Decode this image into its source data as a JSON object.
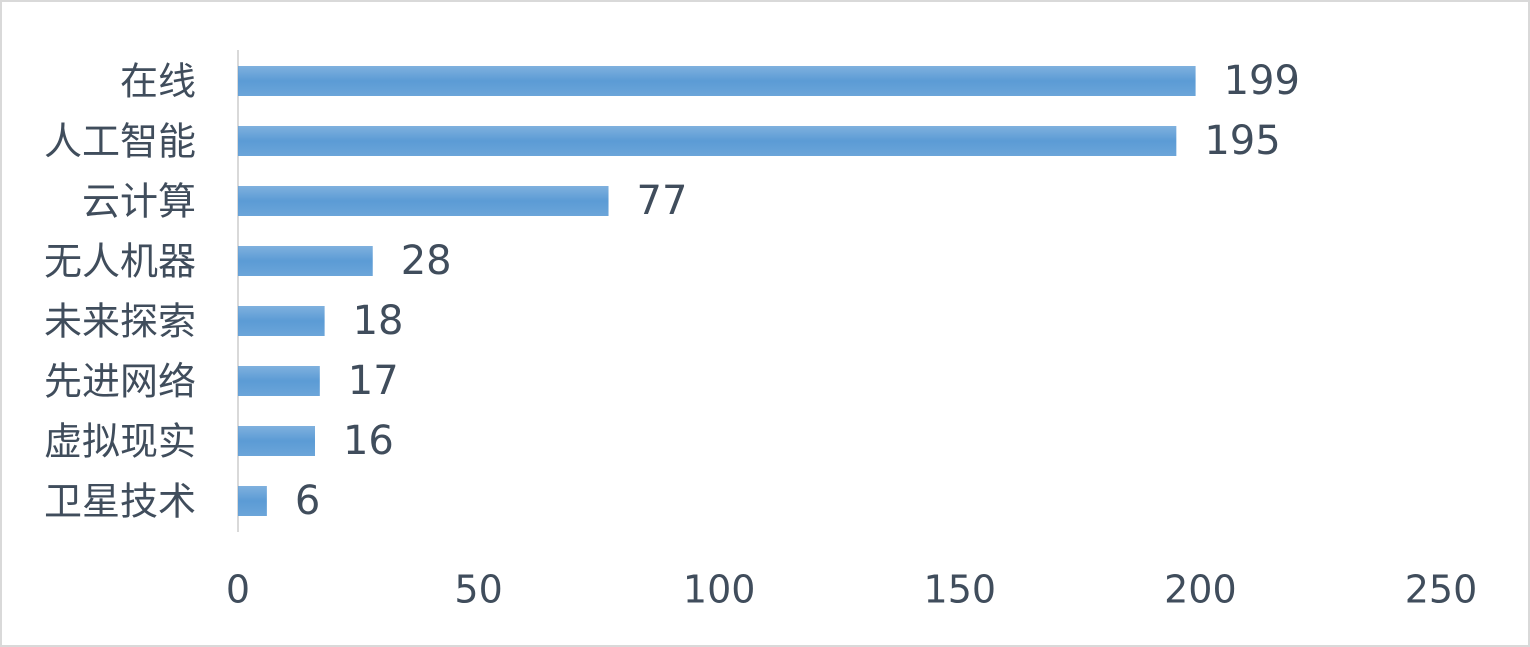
{
  "chart_data": {
    "type": "bar",
    "orientation": "horizontal",
    "categories": [
      "在线",
      "人工智能",
      "云计算",
      "无人机器",
      "未来探索",
      "先进网络",
      "虚拟现实",
      "卫星技术"
    ],
    "values": [
      199,
      195,
      77,
      28,
      18,
      17,
      16,
      6
    ],
    "color": "#5b9bd5",
    "xlim": [
      0,
      250
    ],
    "xticks": [
      0,
      50,
      100,
      150,
      200,
      250
    ],
    "grid": false
  }
}
